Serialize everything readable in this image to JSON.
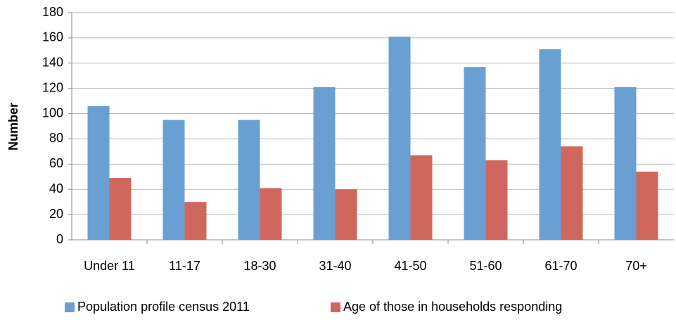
{
  "chart_data": {
    "type": "bar",
    "y_label": "Number",
    "categories": [
      "Under 11",
      "11-17",
      "18-30",
      "31-40",
      "41-50",
      "51-60",
      "61-70",
      "70+"
    ],
    "series": [
      {
        "name": "Population profile census 2011",
        "color": "#6a9fd4",
        "values": [
          106,
          95,
          95,
          121,
          161,
          137,
          151,
          121
        ]
      },
      {
        "name": "Age of those in households responding",
        "color": "#d0675f",
        "values": [
          49,
          30,
          41,
          40,
          67,
          63,
          74,
          54
        ]
      }
    ],
    "ylim": [
      0,
      180
    ],
    "yticks": [
      0,
      20,
      40,
      60,
      80,
      100,
      120,
      140,
      160,
      180
    ],
    "grid": true,
    "legend": "bottom"
  }
}
